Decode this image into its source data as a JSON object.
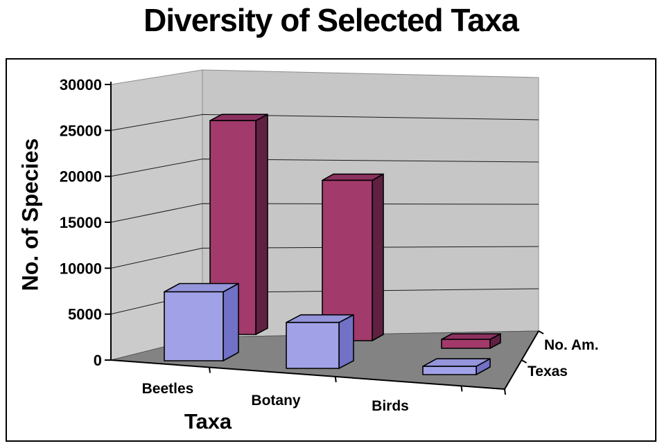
{
  "chart_data": {
    "type": "bar",
    "projection": "3d",
    "title": "Diversity of Selected Taxa",
    "xlabel": "Taxa",
    "ylabel": "No. of Species",
    "categories": [
      "Beetles",
      "Botany",
      "Birds"
    ],
    "series": [
      {
        "name": "No. Am.",
        "row": "back",
        "values": [
          24000,
          18000,
          1000
        ],
        "color_front": "#A23A6B",
        "color_side": "#5F2042",
        "color_top": "#8C3160"
      },
      {
        "name": "Texas",
        "row": "front",
        "values": [
          7500,
          5000,
          900
        ],
        "color_front": "#A1A1E8",
        "color_side": "#7171C6",
        "color_top": "#9595DC"
      }
    ],
    "ylim": [
      0,
      30000
    ],
    "yticks": [
      0,
      5000,
      10000,
      15000,
      20000,
      25000,
      30000
    ],
    "ytick_labels": [
      "0",
      "5000",
      "10000",
      "15000",
      "20000",
      "25000",
      "30000"
    ],
    "grid": true,
    "legend_position": "series-axis-right",
    "walls": {
      "left": "#CBCBCB",
      "back": "#C6C6C6",
      "floor": "#838383"
    },
    "outline_color": "#000000",
    "gridline_color": "#1A1A1A"
  }
}
